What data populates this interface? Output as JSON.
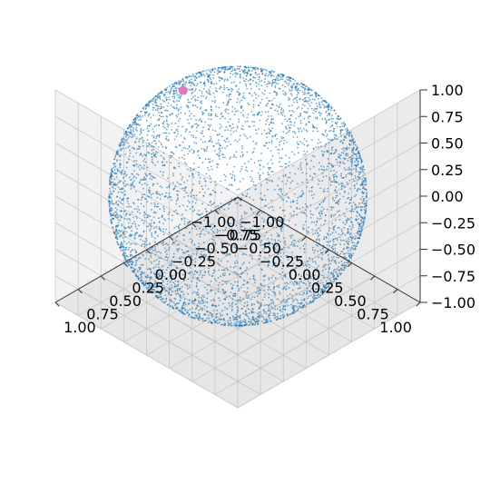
{
  "chart_data": {
    "type": "scatter",
    "projection": "3d",
    "shape": "points uniformly distributed on a unit sphere",
    "n_points_approx": 5000,
    "view": {
      "elevation_deg": 35,
      "azimuth_deg": 45
    },
    "xlim": [
      -1,
      1
    ],
    "ylim": [
      -1,
      1
    ],
    "zlim": [
      -1,
      1
    ],
    "grid": true,
    "title": "",
    "xlabel": "",
    "ylabel": "",
    "zlabel": "",
    "x_ticks": [
      "−1.00",
      "−0.75",
      "−0.50",
      "−0.25",
      "0.00",
      "0.25",
      "0.50",
      "0.75",
      "1.00"
    ],
    "y_ticks": [
      "−1.00",
      "−0.75",
      "−0.50",
      "−0.25",
      "0.00",
      "0.25",
      "0.50",
      "0.75",
      "1.00"
    ],
    "z_ticks": [
      "−1.00",
      "−0.75",
      "−0.50",
      "−0.25",
      "0.00",
      "0.25",
      "0.50",
      "0.75",
      "1.00"
    ],
    "tick_values": [
      -1,
      -0.75,
      -0.5,
      -0.25,
      0,
      0.25,
      0.5,
      0.75,
      1
    ],
    "series": [
      {
        "color": "#1f77b4",
        "marker": "small dot"
      }
    ],
    "highlight": {
      "color": "#e377c2",
      "x": -0.25,
      "y": -0.85,
      "z": 0.45
    }
  }
}
